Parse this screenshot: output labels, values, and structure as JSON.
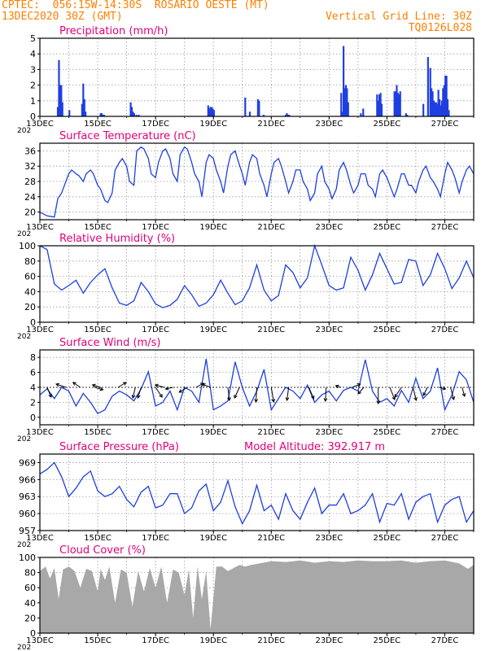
{
  "header": {
    "line1": "CPTEC:  056:15W-14:30S  ROSARIO OESTE (MT)",
    "line2": "13DEC2020 30Z (GMT)",
    "grid_note": "Vertical Grid Line: 30Z",
    "code": "TQ0126L028"
  },
  "colors": {
    "header": "#ff7f00",
    "title": "#e0007a",
    "line": "#1f3fe0",
    "bar": "#1f3fe0",
    "cloud": "#a8a8a8",
    "grid": "#9a9a9a"
  },
  "x_axis": {
    "labels": [
      "13DEC",
      "15DEC",
      "17DEC",
      "19DEC",
      "21DEC",
      "23DEC",
      "25DEC",
      "27DEC"
    ],
    "day_range": [
      0,
      15
    ],
    "label_days": [
      0,
      2,
      4,
      6,
      8,
      10,
      12,
      14
    ],
    "year_fragment": "202"
  },
  "chart_data": [
    {
      "type": "bar",
      "title": "Precipitation (mm/h)",
      "ylim": [
        0,
        5
      ],
      "yticks": [
        "0",
        "1",
        "2",
        "3",
        "4",
        "5"
      ],
      "x": [
        0.62,
        0.66,
        0.7,
        0.74,
        0.78,
        1.02,
        1.46,
        1.5,
        1.54,
        1.58,
        2.1,
        2.14,
        2.18,
        2.22,
        3.14,
        3.18,
        3.22,
        3.26,
        3.34,
        3.42,
        5.82,
        5.86,
        5.9,
        5.94,
        5.98,
        6.02,
        7.1,
        7.26,
        7.54,
        7.58,
        7.74,
        8.5,
        8.54,
        8.58,
        8.62,
        10.42,
        10.46,
        10.5,
        10.54,
        10.58,
        10.62,
        10.66,
        11.1,
        11.18,
        11.66,
        11.7,
        11.74,
        11.78,
        11.82,
        12.26,
        12.3,
        12.34,
        12.38,
        12.42,
        12.46,
        12.66,
        12.7,
        13.26,
        13.42,
        13.5,
        13.54,
        13.58,
        13.62,
        13.66,
        13.7,
        13.74,
        13.78,
        13.82,
        13.86,
        13.9,
        13.94,
        13.98,
        14.02,
        14.06,
        14.1,
        14.14
      ],
      "values": [
        0.6,
        3.6,
        2.0,
        2.0,
        0.9,
        0.4,
        0.8,
        2.1,
        1.1,
        0.3,
        0.2,
        0.2,
        0.1,
        0.1,
        0.9,
        0.6,
        0.3,
        0.2,
        0.1,
        0.1,
        0.7,
        0.5,
        0.6,
        0.6,
        0.5,
        0.4,
        1.2,
        0.3,
        1.1,
        1.0,
        0.1,
        0.1,
        0.2,
        0.1,
        0.1,
        1.5,
        0.3,
        4.5,
        1.8,
        2.0,
        1.8,
        0.9,
        0.2,
        0.5,
        1.4,
        1.0,
        1.4,
        1.5,
        0.8,
        1.6,
        1.6,
        2.0,
        1.5,
        1.4,
        1.6,
        0.2,
        0.1,
        0.8,
        3.8,
        3.1,
        1.8,
        1.6,
        1.0,
        0.9,
        0.9,
        0.8,
        1.7,
        1.1,
        0.7,
        1.0,
        1.8,
        2.0,
        2.6,
        2.6,
        1.1,
        0.4
      ]
    },
    {
      "type": "line",
      "title": "Surface Temperature (nC)",
      "ylim": [
        18,
        38
      ],
      "yticks": [
        "20",
        "24",
        "28",
        "32",
        "36"
      ],
      "ytick_values": [
        20,
        24,
        28,
        32,
        36
      ],
      "x": [
        0,
        0.25,
        0.5,
        0.62,
        0.75,
        0.85,
        1.0,
        1.1,
        1.25,
        1.35,
        1.5,
        1.6,
        1.75,
        1.85,
        2.0,
        2.1,
        2.25,
        2.35,
        2.5,
        2.6,
        2.75,
        2.85,
        3.0,
        3.1,
        3.25,
        3.35,
        3.5,
        3.6,
        3.75,
        3.85,
        4.0,
        4.1,
        4.25,
        4.35,
        4.5,
        4.6,
        4.75,
        4.85,
        5.0,
        5.1,
        5.25,
        5.35,
        5.5,
        5.6,
        5.75,
        5.85,
        6.0,
        6.1,
        6.25,
        6.35,
        6.5,
        6.6,
        6.75,
        6.85,
        7.0,
        7.1,
        7.25,
        7.35,
        7.5,
        7.6,
        7.75,
        7.85,
        8.0,
        8.1,
        8.25,
        8.35,
        8.5,
        8.6,
        8.75,
        8.85,
        9.0,
        9.1,
        9.25,
        9.35,
        9.5,
        9.6,
        9.75,
        9.85,
        10.0,
        10.1,
        10.25,
        10.35,
        10.5,
        10.6,
        10.75,
        10.85,
        11.0,
        11.1,
        11.25,
        11.35,
        11.5,
        11.6,
        11.75,
        11.85,
        12.0,
        12.1,
        12.25,
        12.35,
        12.5,
        12.6,
        12.75,
        12.85,
        13.0,
        13.1,
        13.25,
        13.35,
        13.5,
        13.6,
        13.75,
        13.85,
        14.0,
        14.1,
        14.25,
        14.35,
        14.5,
        14.6,
        14.75,
        14.85,
        15.0
      ],
      "values": [
        20,
        19,
        18.7,
        23.5,
        25,
        27,
        30,
        31,
        30,
        29.5,
        28,
        30,
        31,
        30,
        27,
        26,
        23,
        22.5,
        25,
        31,
        33,
        34,
        32,
        28,
        27,
        36,
        37,
        36.5,
        34,
        30,
        29,
        33,
        36,
        36.5,
        34,
        30,
        28,
        35,
        37,
        36.5,
        33,
        30,
        28,
        24,
        33,
        35,
        34,
        31,
        28,
        25,
        32,
        35,
        36,
        33.5,
        30,
        27,
        33,
        35,
        34,
        30,
        27,
        24,
        30,
        33,
        34,
        32,
        28,
        25,
        28,
        31,
        31,
        28,
        26,
        23,
        25,
        30,
        32,
        28,
        26,
        23.5,
        26,
        31,
        33,
        31,
        27,
        25,
        27,
        30,
        30,
        27,
        26,
        24,
        30,
        31,
        29,
        27,
        24,
        26,
        30,
        30,
        27,
        27,
        25,
        28,
        31,
        32,
        29,
        28,
        26,
        24,
        30,
        33,
        31,
        29,
        25,
        28,
        31,
        32,
        30
      ]
    },
    {
      "type": "line",
      "title": "Relative Humidity (%)",
      "ylim": [
        0,
        100
      ],
      "yticks": [
        "0",
        "20",
        "40",
        "60",
        "80",
        "100"
      ],
      "ytick_values": [
        0,
        20,
        40,
        60,
        80,
        100
      ],
      "x": [
        0,
        0.25,
        0.5,
        0.75,
        1.0,
        1.25,
        1.5,
        1.75,
        2.0,
        2.25,
        2.5,
        2.75,
        3.0,
        3.25,
        3.5,
        3.75,
        4.0,
        4.25,
        4.5,
        4.75,
        5.0,
        5.25,
        5.5,
        5.75,
        6.0,
        6.25,
        6.5,
        6.75,
        7.0,
        7.25,
        7.5,
        7.75,
        8.0,
        8.25,
        8.5,
        8.75,
        9.0,
        9.25,
        9.5,
        9.75,
        10.0,
        10.25,
        10.5,
        10.75,
        11.0,
        11.25,
        11.5,
        11.75,
        12.0,
        12.25,
        12.5,
        12.75,
        13.0,
        13.25,
        13.5,
        13.75,
        14.0,
        14.25,
        14.5,
        14.75,
        15.0
      ],
      "values": [
        100,
        95,
        50,
        42,
        48,
        55,
        38,
        52,
        62,
        70,
        45,
        25,
        22,
        28,
        52,
        40,
        24,
        19,
        22,
        30,
        48,
        36,
        21,
        25,
        36,
        55,
        38,
        23,
        28,
        45,
        75,
        42,
        28,
        35,
        75,
        65,
        45,
        58,
        100,
        75,
        48,
        42,
        45,
        85,
        68,
        42,
        62,
        90,
        70,
        50,
        52,
        82,
        80,
        48,
        62,
        90,
        70,
        44,
        58,
        80,
        58
      ]
    },
    {
      "type": "line",
      "title": "Surface Wind (m/s)",
      "ylim": [
        -1,
        9
      ],
      "yticks": [
        "0",
        "2",
        "4",
        "6",
        "8"
      ],
      "ytick_values": [
        0,
        2,
        4,
        6,
        8
      ],
      "x": [
        0,
        0.25,
        0.5,
        0.75,
        1.0,
        1.25,
        1.5,
        1.75,
        2.0,
        2.25,
        2.5,
        2.75,
        3.0,
        3.25,
        3.5,
        3.75,
        4.0,
        4.25,
        4.5,
        4.75,
        5.0,
        5.25,
        5.5,
        5.75,
        6.0,
        6.25,
        6.5,
        6.75,
        7.0,
        7.25,
        7.5,
        7.75,
        8.0,
        8.25,
        8.5,
        8.75,
        9.0,
        9.25,
        9.5,
        9.75,
        10.0,
        10.25,
        10.5,
        10.75,
        11.0,
        11.25,
        11.5,
        11.75,
        12.0,
        12.25,
        12.5,
        12.75,
        13.0,
        13.25,
        13.5,
        13.75,
        14.0,
        14.25,
        14.5,
        14.75,
        15.0
      ],
      "values": [
        3,
        3.8,
        2.5,
        4,
        3.5,
        1.5,
        3.2,
        2,
        0.5,
        1,
        2.8,
        3.5,
        3,
        2.2,
        3.8,
        6.1,
        1.5,
        2,
        3.5,
        1,
        4,
        3.5,
        2,
        7.8,
        1,
        1.5,
        2.2,
        7.4,
        4,
        1.5,
        3.5,
        6.4,
        1,
        2.5,
        4,
        3.5,
        2.5,
        4.3,
        2,
        3,
        3.5,
        2.2,
        3.6,
        4,
        3.5,
        7.7,
        3.5,
        2,
        2.5,
        1.5,
        3.6,
        2,
        5.2,
        2.5,
        3.5,
        6.6,
        1,
        3,
        6.1,
        5,
        2
      ],
      "arrows": [
        {
          "x": 0.25,
          "u": 0.5,
          "v": -1.2
        },
        {
          "x": 0.9,
          "u": -1.2,
          "v": 0.4
        },
        {
          "x": 1.4,
          "u": -0.9,
          "v": 0.6
        },
        {
          "x": 1.9,
          "u": 1.0,
          "v": -0.3
        },
        {
          "x": 2.1,
          "u": -1.0,
          "v": 0.3
        },
        {
          "x": 2.7,
          "u": 1.0,
          "v": 0.6
        },
        {
          "x": 3.3,
          "u": -0.3,
          "v": -1.3
        },
        {
          "x": 3.5,
          "u": -0.4,
          "v": -1.3
        },
        {
          "x": 4.0,
          "u": 0.8,
          "v": -1.2
        },
        {
          "x": 4.3,
          "u": -1.1,
          "v": 0.3
        },
        {
          "x": 4.6,
          "u": -0.9,
          "v": -0.2
        },
        {
          "x": 5.1,
          "u": -1.0,
          "v": -0.6
        },
        {
          "x": 5.4,
          "u": 0.9,
          "v": 0.5
        },
        {
          "x": 5.9,
          "u": -1.0,
          "v": 0.4
        },
        {
          "x": 6.5,
          "u": 0.2,
          "v": -1.6
        },
        {
          "x": 6.9,
          "u": -0.6,
          "v": -1.3
        },
        {
          "x": 7.5,
          "u": -0.1,
          "v": -1.8
        },
        {
          "x": 8.0,
          "u": 0.3,
          "v": -1.8
        },
        {
          "x": 8.6,
          "u": -0.2,
          "v": -1.6
        },
        {
          "x": 9.3,
          "u": 0.6,
          "v": -1.4
        },
        {
          "x": 9.9,
          "u": -0.1,
          "v": -1.7
        },
        {
          "x": 10.4,
          "u": -0.6,
          "v": 0.2
        },
        {
          "x": 10.8,
          "u": 1.0,
          "v": 0.4
        },
        {
          "x": 11.2,
          "u": -0.7,
          "v": -0.8
        },
        {
          "x": 11.7,
          "u": 0.0,
          "v": -2.0
        },
        {
          "x": 12.1,
          "u": 0.6,
          "v": -1.5
        },
        {
          "x": 12.5,
          "u": -0.8,
          "v": -1.2
        },
        {
          "x": 12.9,
          "u": 0.4,
          "v": -1.6
        },
        {
          "x": 13.4,
          "u": -0.5,
          "v": -1.0
        },
        {
          "x": 13.8,
          "u": 0.8,
          "v": -0.2
        },
        {
          "x": 14.2,
          "u": 0.4,
          "v": -1.5
        },
        {
          "x": 14.6,
          "u": 0.3,
          "v": -1.1
        }
      ]
    },
    {
      "type": "line",
      "title": "Surface Pressure (hPa)",
      "annotation": "Model Altitude: 392.917  m",
      "ylim": [
        957,
        970.5
      ],
      "yticks": [
        "957",
        "960",
        "963",
        "966",
        "969"
      ],
      "ytick_values": [
        957,
        960,
        963,
        966,
        969
      ],
      "x": [
        0,
        0.25,
        0.5,
        0.75,
        1.0,
        1.25,
        1.5,
        1.75,
        2.0,
        2.25,
        2.5,
        2.75,
        3.0,
        3.25,
        3.5,
        3.75,
        4.0,
        4.25,
        4.5,
        4.75,
        5.0,
        5.25,
        5.5,
        5.75,
        6.0,
        6.25,
        6.5,
        6.75,
        7.0,
        7.25,
        7.5,
        7.75,
        8.0,
        8.25,
        8.5,
        8.75,
        9.0,
        9.25,
        9.5,
        9.75,
        10.0,
        10.25,
        10.5,
        10.75,
        11.0,
        11.25,
        11.5,
        11.75,
        12.0,
        12.25,
        12.5,
        12.75,
        13.0,
        13.25,
        13.5,
        13.75,
        14.0,
        14.25,
        14.5,
        14.75,
        15.0
      ],
      "values": [
        967,
        967.8,
        969,
        966.5,
        963,
        964.5,
        966.5,
        967.5,
        964,
        963,
        963.5,
        964.8,
        962.5,
        961.2,
        963.8,
        964.8,
        961,
        961.5,
        963.5,
        963.5,
        960,
        961,
        964,
        965.2,
        960.5,
        962,
        965.8,
        961.2,
        958.2,
        960.5,
        965,
        960.5,
        961.5,
        959,
        963.5,
        960.5,
        959,
        962,
        964.5,
        960,
        961.5,
        961.5,
        963.5,
        960,
        960.5,
        961.5,
        963.5,
        958.5,
        961.8,
        961.5,
        963.5,
        959,
        962,
        963,
        963.5,
        958.5,
        961.5,
        962.5,
        963,
        958.5,
        960.5
      ]
    },
    {
      "type": "area",
      "title": "Cloud Cover (%)",
      "ylim": [
        0,
        100
      ],
      "yticks": [
        "0",
        "20",
        "40",
        "60",
        "80",
        "100"
      ],
      "ytick_values": [
        0,
        20,
        40,
        60,
        80,
        100
      ],
      "x": [
        0,
        0.2,
        0.35,
        0.5,
        0.65,
        0.8,
        1.0,
        1.2,
        1.4,
        1.6,
        1.8,
        2.0,
        2.1,
        2.25,
        2.4,
        2.6,
        2.8,
        3.0,
        3.2,
        3.4,
        3.6,
        3.8,
        4.0,
        4.2,
        4.4,
        4.6,
        4.8,
        5.0,
        5.15,
        5.3,
        5.45,
        5.6,
        5.75,
        5.9,
        6.1,
        6.3,
        6.5,
        6.7,
        6.9,
        7.1,
        7.3,
        7.6,
        8.0,
        8.5,
        9.0,
        9.5,
        10.0,
        10.5,
        11.0,
        11.5,
        12.0,
        12.5,
        13.0,
        13.5,
        14.0,
        14.5,
        14.8,
        15.0
      ],
      "values": [
        82,
        88,
        72,
        86,
        45,
        84,
        88,
        82,
        60,
        85,
        82,
        55,
        85,
        70,
        88,
        40,
        84,
        80,
        35,
        82,
        55,
        86,
        60,
        88,
        40,
        84,
        80,
        50,
        84,
        20,
        88,
        45,
        82,
        5,
        88,
        88,
        82,
        86,
        90,
        88,
        90,
        92,
        95,
        94,
        96,
        93,
        95,
        94,
        96,
        95,
        95,
        96,
        93,
        95,
        96,
        92,
        85,
        90
      ]
    }
  ]
}
